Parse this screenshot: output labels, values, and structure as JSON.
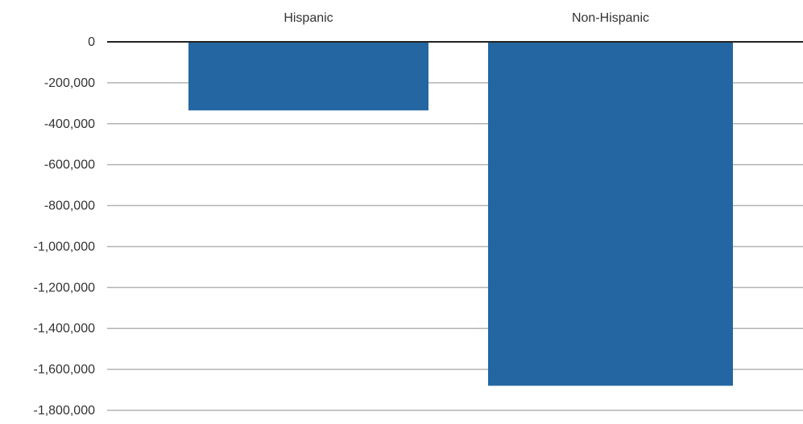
{
  "chart_data": {
    "type": "bar",
    "title": "",
    "xlabel": "",
    "ylabel": "",
    "categories": [
      "Hispanic",
      "Non-Hispanic"
    ],
    "values": [
      -335000,
      -1680000
    ],
    "ylim": [
      -1800000,
      0
    ],
    "yticks": [
      0,
      -200000,
      -400000,
      -600000,
      -800000,
      -1000000,
      -1200000,
      -1400000,
      -1600000,
      -1800000
    ],
    "ytick_labels": [
      "0",
      "-200,000",
      "-400,000",
      "-600,000",
      "-800,000",
      "-1,000,000",
      "-1,200,000",
      "-1,400,000",
      "-1,600,000",
      "-1,800,000"
    ],
    "category_axis_position": "top",
    "grid": true,
    "legend": "none",
    "colors": {
      "bar": "#2466a1",
      "zero_line": "#222222",
      "grid": "#b3b3b3",
      "text": "#333333"
    }
  }
}
